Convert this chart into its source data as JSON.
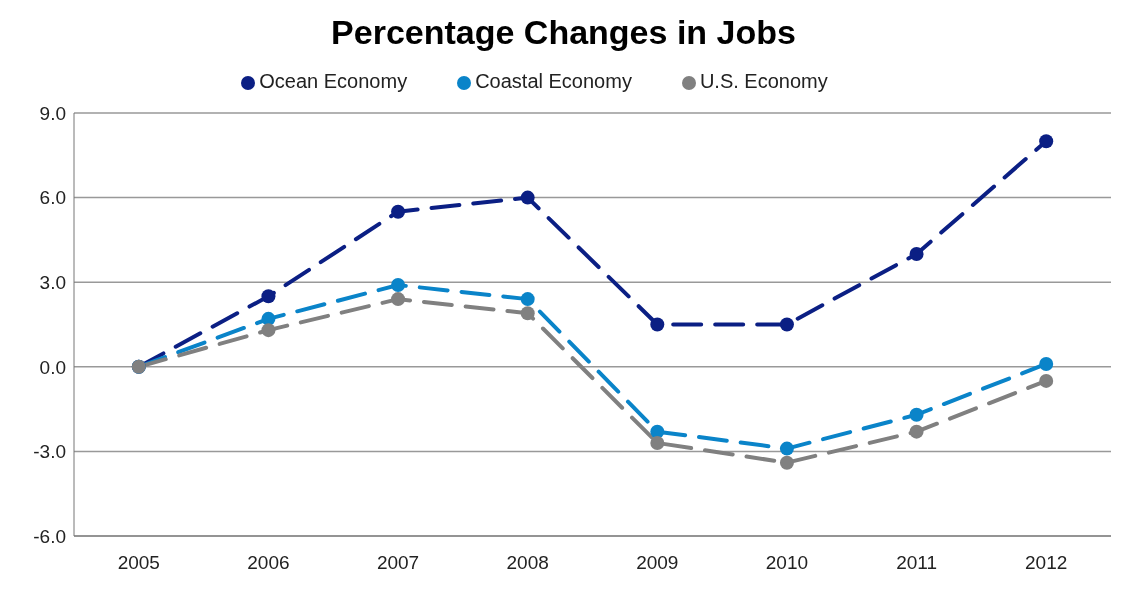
{
  "chart_data": {
    "type": "line",
    "title": "Percentage Changes in Jobs",
    "categories": [
      "2005",
      "2006",
      "2007",
      "2008",
      "2009",
      "2010",
      "2011",
      "2012"
    ],
    "series": [
      {
        "name": "Ocean Economy",
        "color": "#0b1f84",
        "values": [
          0,
          2.5,
          5.5,
          6.0,
          1.5,
          1.5,
          4.0,
          8.0
        ]
      },
      {
        "name": "Coastal Economy",
        "color": "#0a84c9",
        "values": [
          0,
          1.7,
          2.9,
          2.4,
          -2.3,
          -2.9,
          -1.7,
          0.1
        ]
      },
      {
        "name": "U.S. Economy",
        "color": "#808080",
        "values": [
          0,
          1.3,
          2.4,
          1.9,
          -2.7,
          -3.4,
          -2.3,
          -0.5
        ]
      }
    ],
    "ylim": [
      -6,
      9
    ],
    "yticks": [
      {
        "value": -6,
        "label": "-6.0"
      },
      {
        "value": -3,
        "label": "-3.0"
      },
      {
        "value": 0,
        "label": "0.0"
      },
      {
        "value": 3,
        "label": "3.0"
      },
      {
        "value": 6,
        "label": "6.0"
      },
      {
        "value": 9,
        "label": "9.0"
      }
    ],
    "grid": "y",
    "legend": "top",
    "marker": "circle",
    "line_style": "dashed"
  }
}
